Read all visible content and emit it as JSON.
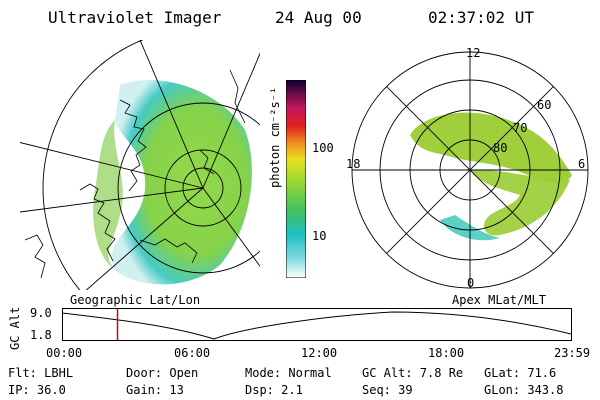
{
  "header": {
    "title": "Ultraviolet Imager",
    "date": "24 Aug 00",
    "time": "02:37:02 UT"
  },
  "colorbar": {
    "unit_label": "photon cm⁻²s⁻¹",
    "ticks": [
      "100",
      "10"
    ]
  },
  "polar_plot": {
    "mlt_labels": {
      "top": "12",
      "left": "18",
      "right": "6",
      "bottom": "0"
    },
    "lat_labels": [
      "60",
      "70",
      "80"
    ]
  },
  "projections": {
    "left": "Geographic Lat/Lon",
    "right": "Apex MLat/MLT"
  },
  "altitude_plot": {
    "ylabel": "GC Alt",
    "ymax": "9.0",
    "ymin": "1.8",
    "time_ticks": [
      "00:00",
      "06:00",
      "12:00",
      "18:00",
      "23:59"
    ],
    "marker_time_hours": 2.617
  },
  "info": {
    "row1": [
      {
        "key": "Flt:",
        "value": "LBHL"
      },
      {
        "key": "Door:",
        "value": "Open"
      },
      {
        "key": "Mode:",
        "value": "Normal"
      },
      {
        "key": "GC Alt:",
        "value": "7.8 Re"
      },
      {
        "key": "GLat:",
        "value": "71.6"
      }
    ],
    "row2": [
      {
        "key": "IP:",
        "value": "36.0"
      },
      {
        "key": "Gain:",
        "value": "13"
      },
      {
        "key": "Dsp:",
        "value": "2.1"
      },
      {
        "key": "Seq:",
        "value": "39"
      },
      {
        "key": "GLon:",
        "value": "343.8"
      }
    ]
  },
  "colors": {
    "marker": "#e00000",
    "aurora_green": "#9acd32",
    "aurora_teal": "#40c8b8"
  }
}
